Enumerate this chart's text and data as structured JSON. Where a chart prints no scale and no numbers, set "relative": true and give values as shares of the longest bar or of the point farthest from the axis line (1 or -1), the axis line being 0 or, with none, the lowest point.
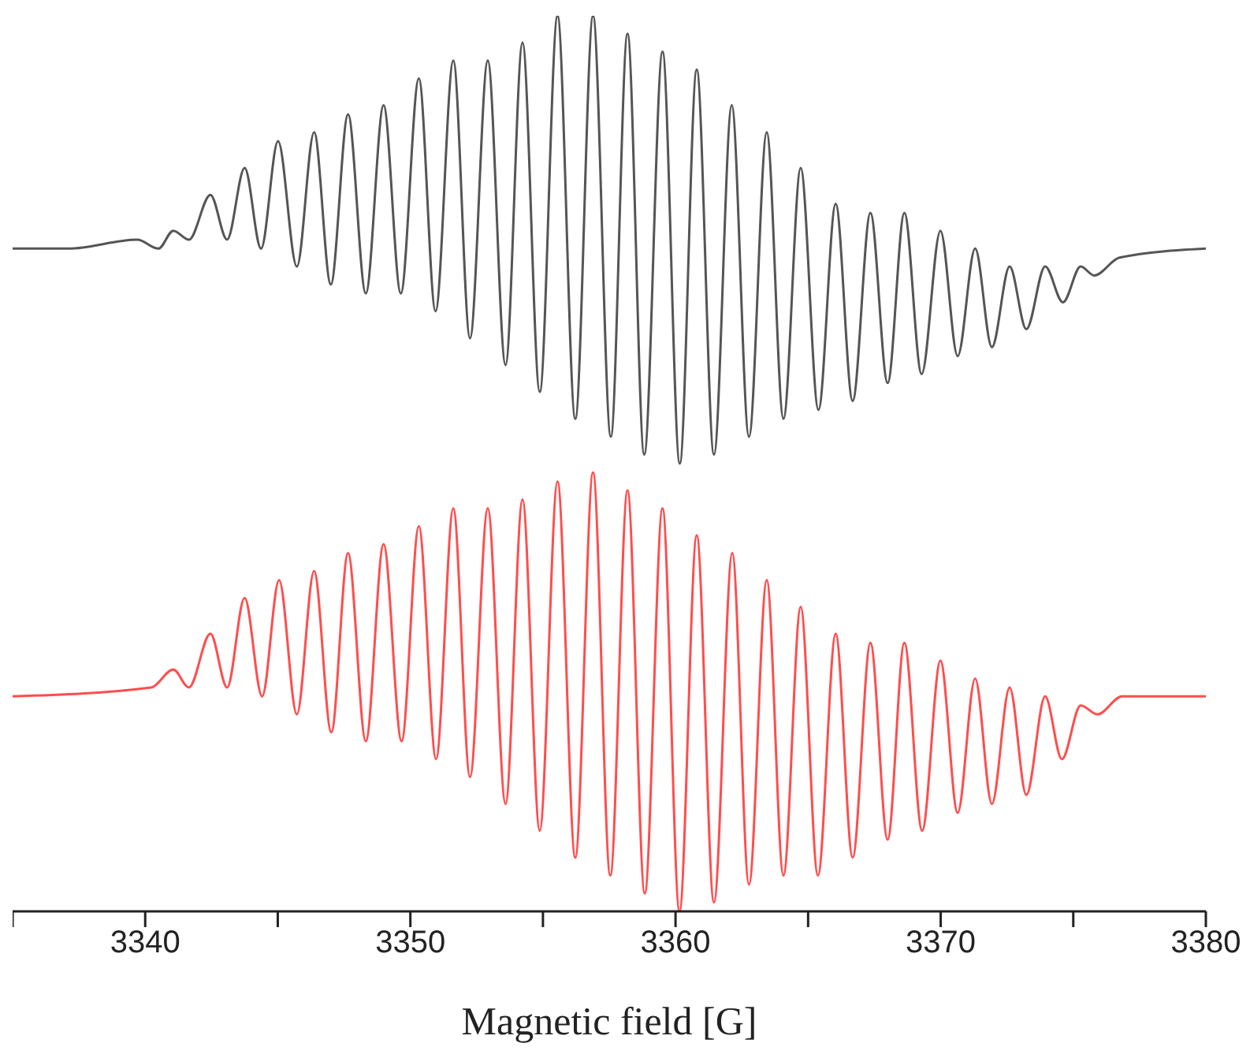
{
  "chart_data": {
    "type": "line",
    "xlabel": "Magnetic field [G]",
    "relative": true,
    "xlim": [
      3335,
      3380
    ],
    "xticks": [
      {
        "value": 3335,
        "label": null
      },
      3340,
      {
        "value": 3345,
        "label": null
      },
      3350,
      {
        "value": 3355,
        "label": null
      },
      3360,
      {
        "value": 3365,
        "label": null
      },
      3370,
      {
        "value": 3375,
        "label": null
      },
      3380
    ],
    "series": [
      {
        "color": "#555555",
        "x": [
          3335.0,
          3337.1,
          3339.7,
          3340.5,
          3341.06,
          3341.65,
          3342.46,
          3343.09,
          3343.75,
          3344.37,
          3345.01,
          3345.72,
          3346.37,
          3347.0,
          3347.65,
          3348.32,
          3348.99,
          3349.64,
          3350.32,
          3350.95,
          3351.62,
          3352.25,
          3352.92,
          3353.59,
          3354.23,
          3354.88,
          3355.55,
          3356.22,
          3356.89,
          3357.56,
          3358.19,
          3358.82,
          3359.51,
          3360.16,
          3360.8,
          3361.45,
          3362.12,
          3362.77,
          3363.44,
          3364.07,
          3364.72,
          3365.39,
          3366.04,
          3366.68,
          3367.35,
          3368.0,
          3368.63,
          3369.28,
          3369.99,
          3370.64,
          3371.3,
          3371.93,
          3372.6,
          3373.23,
          3373.94,
          3374.61,
          3375.28,
          3375.79,
          3376.74,
          3380.0
        ],
        "values": [
          0.74,
          0.74,
          0.75,
          0.74,
          0.76,
          0.75,
          0.8,
          0.75,
          0.83,
          0.74,
          0.86,
          0.72,
          0.87,
          0.7,
          0.89,
          0.69,
          0.9,
          0.69,
          0.93,
          0.67,
          0.95,
          0.64,
          0.95,
          0.61,
          0.97,
          0.58,
          1.0,
          0.55,
          1.0,
          0.53,
          0.98,
          0.51,
          0.96,
          0.5,
          0.94,
          0.51,
          0.9,
          0.53,
          0.87,
          0.55,
          0.83,
          0.56,
          0.79,
          0.57,
          0.78,
          0.59,
          0.78,
          0.6,
          0.76,
          0.62,
          0.74,
          0.63,
          0.72,
          0.65,
          0.72,
          0.68,
          0.72,
          0.71,
          0.73,
          0.74
        ]
      },
      {
        "color": "#ff4d4d",
        "x": [
          3335.0,
          3340.23,
          3341.06,
          3341.65,
          3342.46,
          3343.09,
          3343.75,
          3344.41,
          3345.05,
          3345.72,
          3346.37,
          3347.02,
          3347.65,
          3348.32,
          3348.99,
          3349.67,
          3350.32,
          3350.97,
          3351.62,
          3352.25,
          3352.92,
          3353.59,
          3354.23,
          3354.88,
          3355.55,
          3356.22,
          3356.89,
          3357.54,
          3358.19,
          3358.84,
          3359.51,
          3360.15,
          3360.8,
          3361.45,
          3362.14,
          3362.77,
          3363.44,
          3364.07,
          3364.72,
          3365.37,
          3366.04,
          3366.68,
          3367.35,
          3368.0,
          3368.63,
          3369.3,
          3369.99,
          3370.64,
          3371.3,
          3371.93,
          3372.6,
          3373.23,
          3373.94,
          3374.57,
          3375.28,
          3375.91,
          3376.84,
          3380.0
        ],
        "values": [
          0.24,
          0.25,
          0.27,
          0.25,
          0.31,
          0.25,
          0.35,
          0.24,
          0.37,
          0.22,
          0.38,
          0.2,
          0.4,
          0.19,
          0.41,
          0.19,
          0.43,
          0.17,
          0.45,
          0.15,
          0.45,
          0.12,
          0.46,
          0.09,
          0.48,
          0.06,
          0.49,
          0.04,
          0.47,
          0.02,
          0.45,
          0.0,
          0.42,
          0.01,
          0.4,
          0.03,
          0.37,
          0.04,
          0.34,
          0.04,
          0.31,
          0.06,
          0.3,
          0.08,
          0.3,
          0.09,
          0.28,
          0.11,
          0.26,
          0.12,
          0.25,
          0.13,
          0.24,
          0.17,
          0.23,
          0.22,
          0.24,
          0.24
        ]
      }
    ]
  }
}
